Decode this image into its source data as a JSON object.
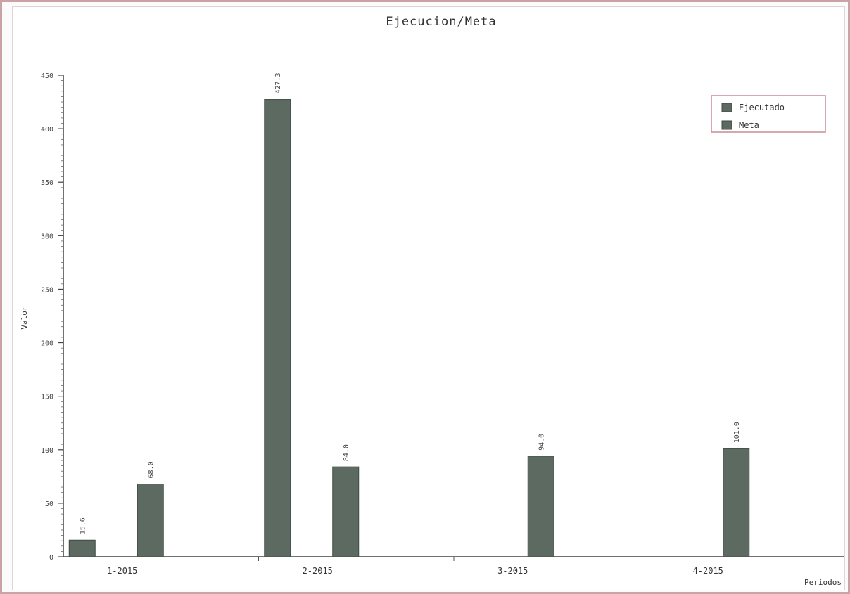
{
  "chart_data": {
    "type": "bar",
    "title": "Ejecucion/Meta",
    "xlabel": "Periodos",
    "ylabel": "Valor",
    "categories": [
      "1-2015",
      "2-2015",
      "3-2015",
      "4-2015"
    ],
    "series": [
      {
        "name": "Ejecutado",
        "values": [
          15.6,
          427.3,
          null,
          null
        ]
      },
      {
        "name": "Meta",
        "values": [
          68.0,
          84.0,
          94.0,
          101.0
        ]
      }
    ],
    "data_labels": [
      [
        "15.6",
        "427.3",
        "",
        ""
      ],
      [
        "68.0",
        "84.0",
        "94.0",
        "101.0"
      ]
    ],
    "ylim": [
      0,
      450
    ],
    "yticks": [
      0,
      50,
      100,
      150,
      200,
      250,
      300,
      350,
      400,
      450
    ],
    "ytick_labels": [
      "0",
      "50",
      "100",
      "150",
      "200",
      "250",
      "300",
      "350",
      "400",
      "450"
    ],
    "grid": false,
    "legend": "top-right",
    "colors": {
      "Ejecutado": "#5c6a62",
      "Meta": "#5c6a62"
    }
  }
}
